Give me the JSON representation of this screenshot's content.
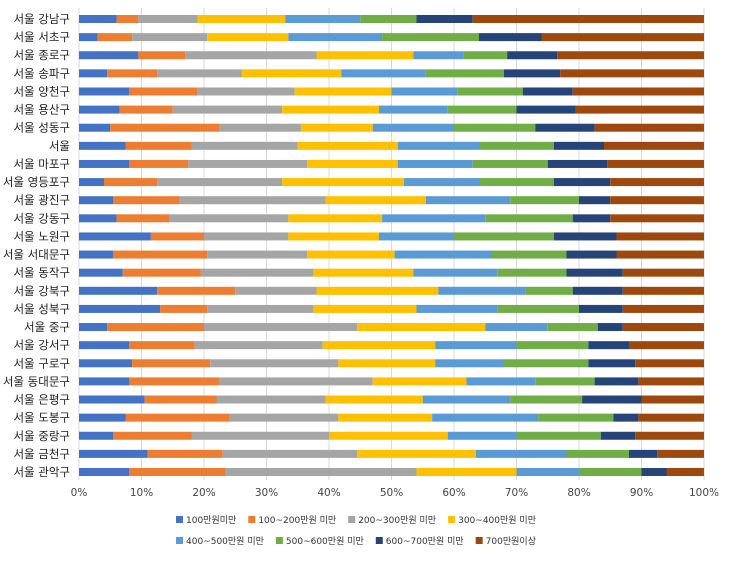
{
  "chart_data": {
    "type": "bar",
    "orientation": "horizontal",
    "stacked": "percent",
    "categories": [
      "서울 강남구",
      "서울 서초구",
      "서울 종로구",
      "서울 송파구",
      "서울 양천구",
      "서울 용산구",
      "서울 성동구",
      "서울",
      "서울 마포구",
      "서울 영등포구",
      "서울 광진구",
      "서울 강동구",
      "서울 노원구",
      "서울 서대문구",
      "서울 동작구",
      "서울 강북구",
      "서울 성북구",
      "서울 중구",
      "서울 강서구",
      "서울 구로구",
      "서울 동대문구",
      "서울 은평구",
      "서울 도봉구",
      "서울 중랑구",
      "서울 금천구",
      "서울 관악구"
    ],
    "series": [
      {
        "name": "100만원미만",
        "color": "#4472C4",
        "values": [
          6,
          3,
          9.5,
          4.5,
          8,
          6.5,
          5,
          7.5,
          8,
          4,
          5.5,
          6,
          11.5,
          5.5,
          7,
          12.5,
          13,
          4.5,
          8,
          8.5,
          8,
          10.5,
          7.5,
          5.5,
          11,
          8
        ]
      },
      {
        "name": "100~200만원 미만",
        "color": "#ED7D31",
        "values": [
          3.5,
          5.5,
          7.5,
          8,
          11,
          8.5,
          17.5,
          10.5,
          9.5,
          8.5,
          10.5,
          8.5,
          8.5,
          15,
          12.5,
          12.5,
          7.5,
          15.5,
          10.5,
          12.5,
          14.5,
          11.5,
          16.5,
          12.5,
          12,
          15.5
        ]
      },
      {
        "name": "200~300만원 미만",
        "color": "#A5A5A5",
        "values": [
          9.5,
          12,
          21,
          13.5,
          15.5,
          17.5,
          13,
          17,
          19,
          20,
          23.5,
          19,
          13.5,
          16,
          18,
          13,
          17,
          24.5,
          20.5,
          20.5,
          24.5,
          17.5,
          17.5,
          22,
          21.5,
          30.5
        ]
      },
      {
        "name": "300~400만원 미만",
        "color": "#FFC000",
        "values": [
          14,
          13,
          15.5,
          16,
          15.5,
          15.5,
          11.5,
          16,
          14.5,
          19.5,
          16,
          15,
          14.5,
          14,
          16,
          19.5,
          16.5,
          20.5,
          18,
          15.5,
          15,
          15.5,
          15,
          19,
          19,
          16
        ]
      },
      {
        "name": "400~500만원 미만",
        "color": "#5B9BD5",
        "values": [
          12,
          15,
          8,
          13.5,
          10.5,
          11,
          13,
          13,
          12,
          12,
          13.5,
          16.5,
          12,
          15.5,
          13.5,
          14,
          13,
          10,
          13,
          11,
          11,
          14,
          17,
          11,
          14.5,
          10
        ]
      },
      {
        "name": "500~600만원 미만",
        "color": "#70AD47",
        "values": [
          9,
          15.5,
          7,
          12.5,
          10.5,
          11,
          13,
          12,
          12,
          12,
          11,
          14,
          16,
          12,
          11,
          7.5,
          13,
          8,
          11.5,
          13.5,
          9.5,
          11.5,
          12,
          13.5,
          10,
          10
        ]
      },
      {
        "name": "600~700만원 미만",
        "color": "#264478",
        "values": [
          9,
          10,
          8,
          9,
          8,
          9.5,
          9.5,
          8,
          9.5,
          9,
          5,
          6,
          10,
          8,
          9,
          8,
          7,
          4,
          6.5,
          7.5,
          7,
          9.5,
          4,
          5.5,
          4.5,
          4
        ]
      },
      {
        "name": "700만원이상",
        "color": "#9E480E",
        "values": [
          37,
          26,
          23.5,
          23,
          21,
          20.5,
          17.5,
          16,
          15.5,
          15,
          15,
          15,
          14,
          14,
          13,
          13,
          13,
          13,
          12,
          11,
          10.5,
          10,
          10.5,
          11,
          7.5,
          6
        ]
      }
    ],
    "x_ticks": [
      "0%",
      "10%",
      "20%",
      "30%",
      "40%",
      "50%",
      "60%",
      "70%",
      "80%",
      "90%",
      "100%"
    ],
    "xlim": [
      0,
      100
    ],
    "grid": "vertical",
    "legend_position": "bottom"
  }
}
